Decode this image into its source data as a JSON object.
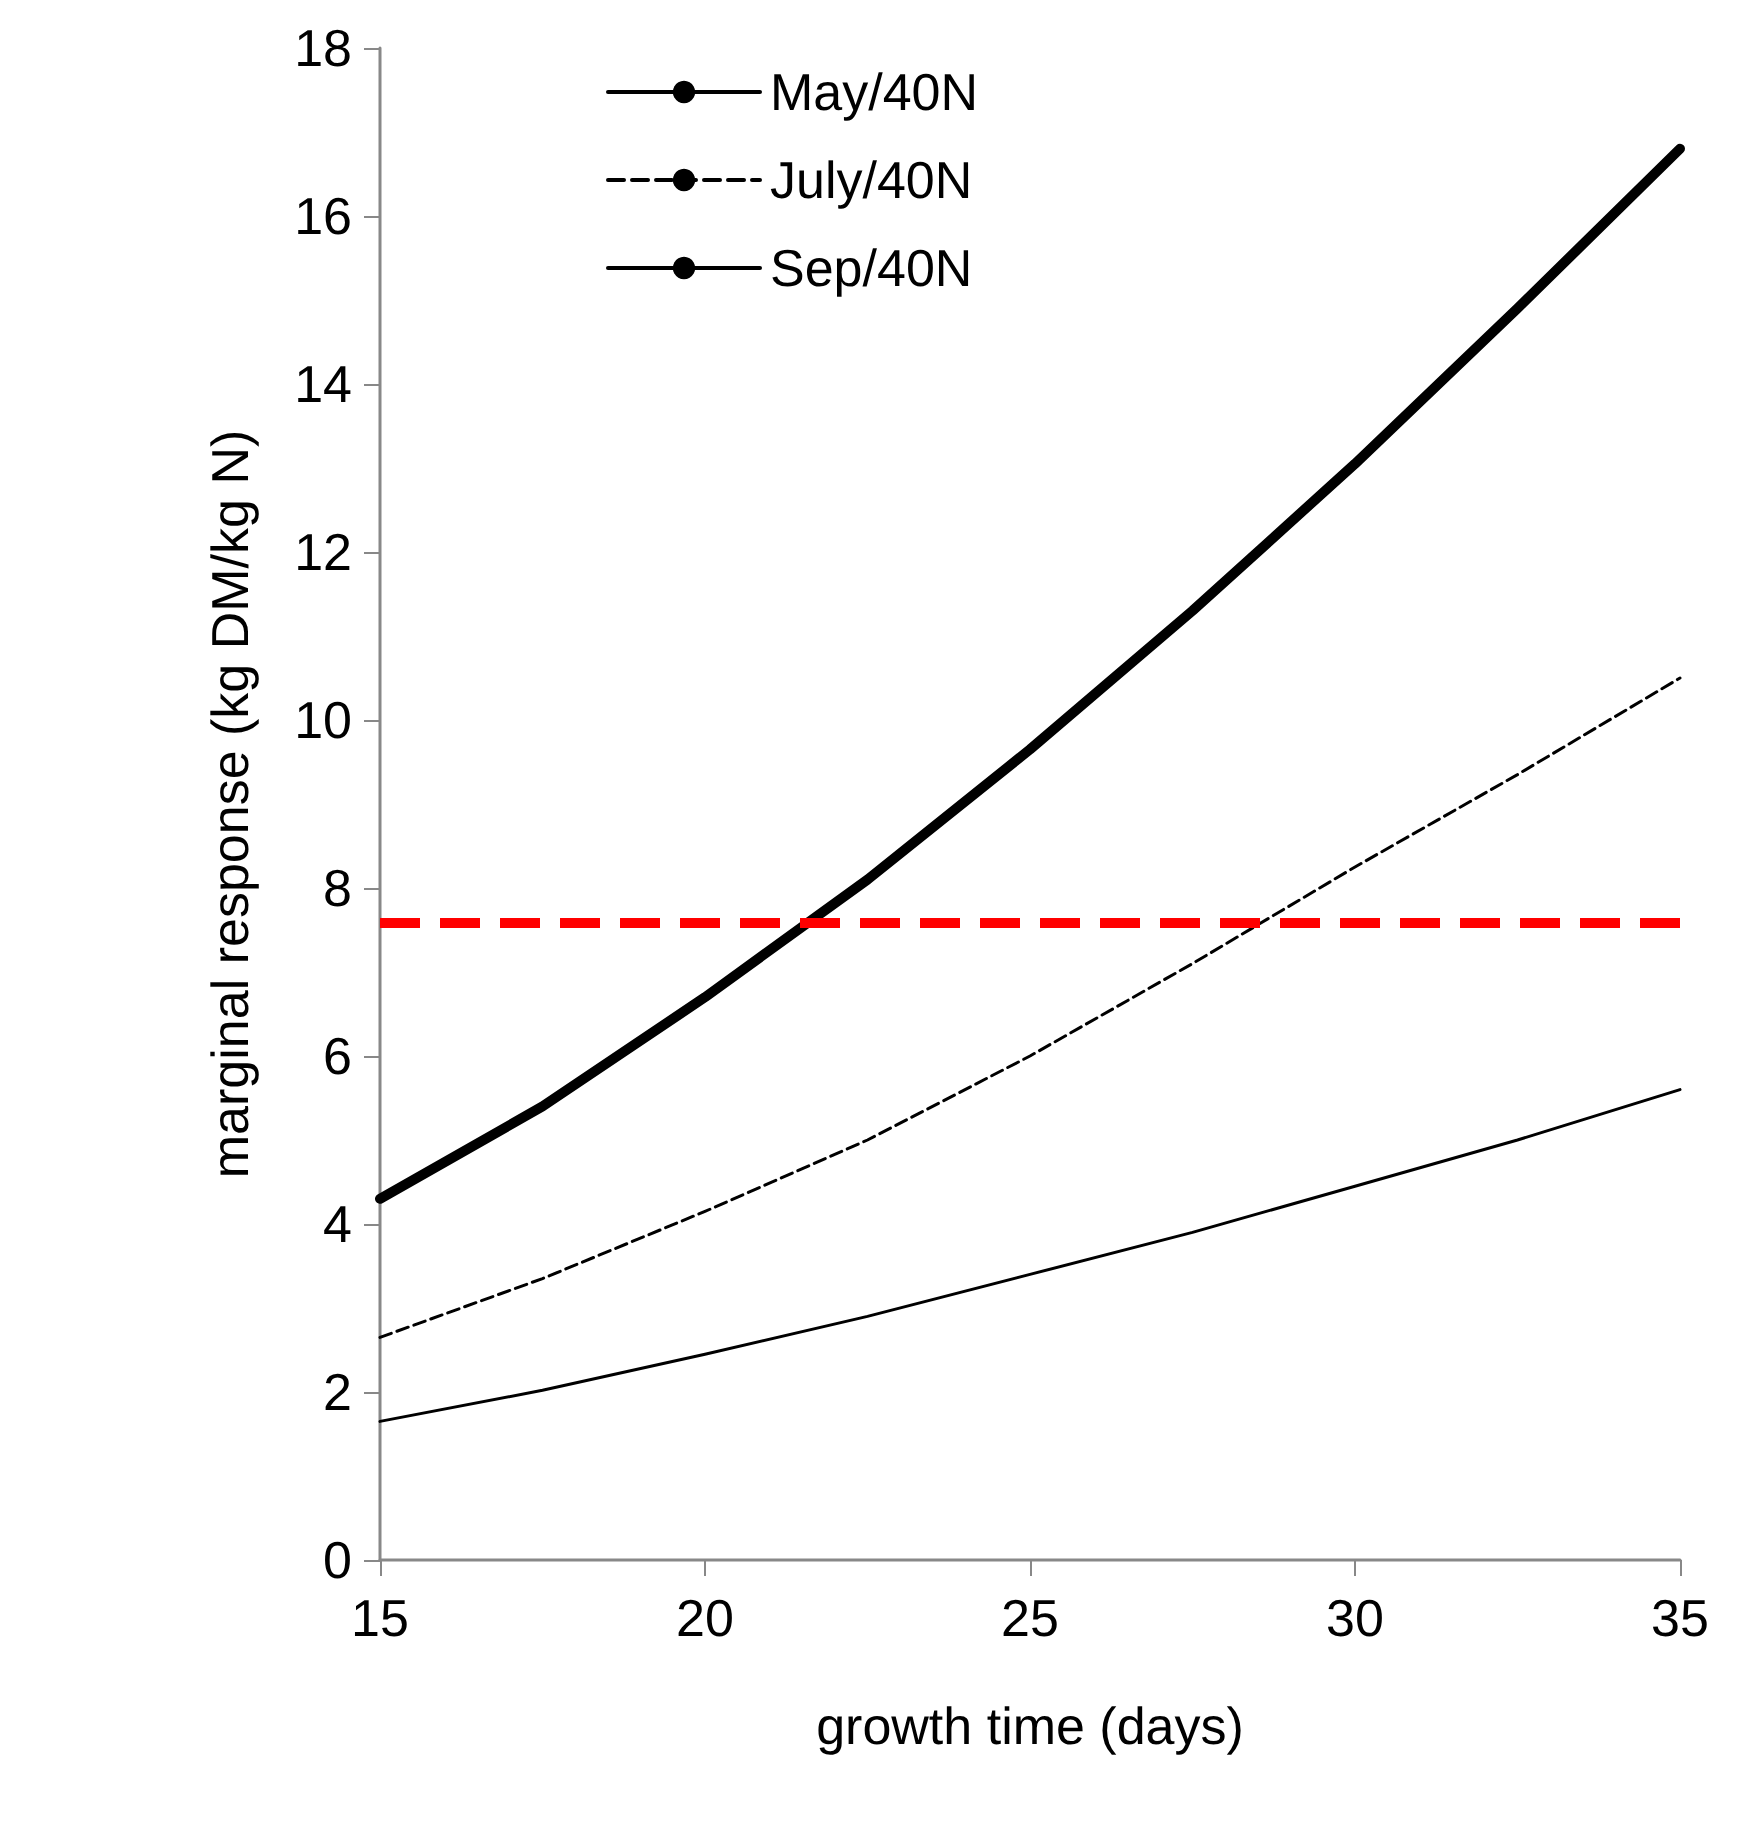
{
  "chart_data": {
    "type": "line",
    "xlabel": "growth time (days)",
    "ylabel": "marginal response (kg DM/kg N)",
    "x": [
      15,
      17.5,
      20,
      22.5,
      25,
      27.5,
      30,
      32.5,
      35
    ],
    "series": [
      {
        "name": "May/40N",
        "color": "#000000",
        "line_style": "solid",
        "values": [
          4.3,
          5.4,
          6.7,
          8.1,
          9.65,
          11.3,
          13.05,
          14.9,
          16.8
        ]
      },
      {
        "name": "July/40N",
        "color": "#000000",
        "line_style": "dashed",
        "values": [
          2.65,
          3.35,
          4.15,
          5.0,
          6.0,
          7.1,
          8.25,
          9.35,
          10.5
        ]
      },
      {
        "name": "Sep/40N",
        "color": "#000000",
        "line_style": "solid",
        "values": [
          1.65,
          2.02,
          2.45,
          2.9,
          3.4,
          3.9,
          4.45,
          5.0,
          5.6
        ]
      }
    ],
    "xlim": [
      15,
      35
    ],
    "xticks": [
      15,
      20,
      25,
      30,
      35
    ],
    "ylim": [
      0,
      18
    ],
    "yticks": [
      0,
      2,
      4,
      6,
      8,
      10,
      12,
      14,
      16,
      18
    ],
    "ref_lines": [
      {
        "axis": "y",
        "value": 7.6,
        "color": "#ff0000",
        "line_style": "dashed"
      }
    ],
    "grid": false,
    "legend": "top left",
    "marker": "none"
  }
}
